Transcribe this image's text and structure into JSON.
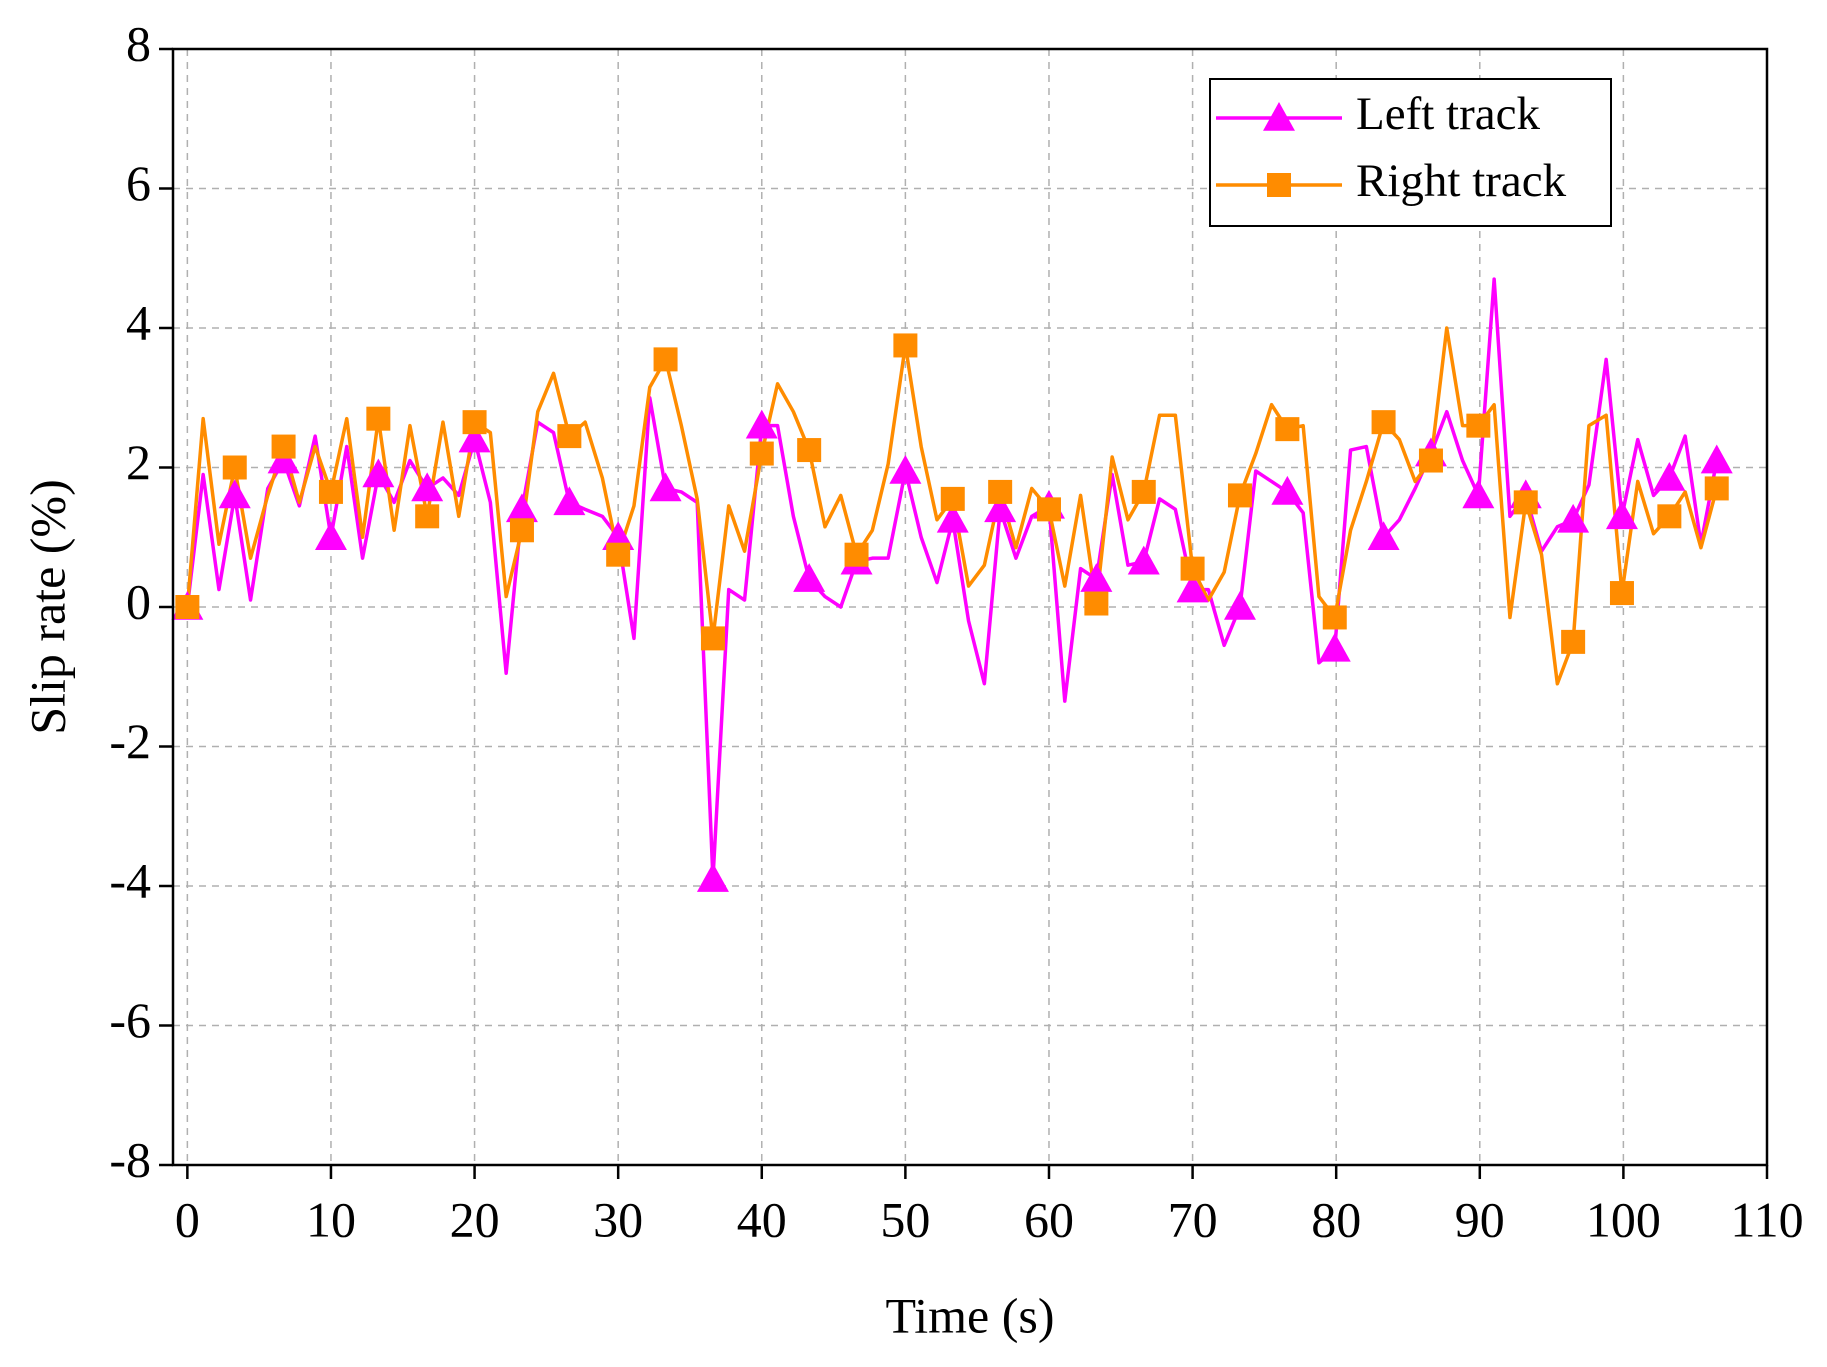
{
  "chart_data": {
    "type": "line",
    "x_label": "Time (s)",
    "y_label": "Slip rate (%)",
    "x": [
      0,
      1.1,
      2.2,
      3.3,
      4.4,
      5.6,
      6.7,
      7.8,
      8.9,
      10,
      11.1,
      12.2,
      13.3,
      14.4,
      15.5,
      16.7,
      17.8,
      18.9,
      20,
      21.1,
      22.2,
      23.3,
      24.4,
      25.5,
      26.6,
      27.7,
      28.9,
      30,
      31.1,
      32.2,
      33.3,
      34.4,
      35.5,
      36.6,
      37.7,
      38.8,
      40,
      41.1,
      42.2,
      43.3,
      44.4,
      45.5,
      46.6,
      47.7,
      48.8,
      50,
      51.1,
      52.2,
      53.3,
      54.4,
      55.5,
      56.6,
      57.7,
      58.8,
      60,
      61.1,
      62.2,
      63.3,
      64.4,
      65.5,
      66.6,
      67.7,
      68.8,
      70,
      71.1,
      72.2,
      73.3,
      74.4,
      75.5,
      76.6,
      77.7,
      78.8,
      79.9,
      81,
      82.1,
      83.3,
      84.4,
      85.5,
      86.6,
      87.7,
      88.8,
      89.9,
      91,
      92.1,
      93.2,
      94.3,
      95.4,
      96.5,
      97.6,
      98.8,
      99.9,
      101,
      102.1,
      103.2,
      104.3,
      105.4,
      106.5
    ],
    "series": [
      {
        "name": "Left track",
        "color": "#ff00ff",
        "marker": "triangle",
        "values": [
          0,
          1.9,
          0.25,
          1.6,
          0.1,
          1.7,
          2.1,
          1.45,
          2.45,
          1.0,
          2.3,
          0.7,
          1.9,
          1.5,
          2.1,
          1.7,
          1.85,
          1.6,
          2.4,
          1.5,
          -0.95,
          1.4,
          2.65,
          2.5,
          1.5,
          1.4,
          1.3,
          1.0,
          -0.45,
          3.0,
          1.7,
          1.65,
          1.5,
          -3.9,
          0.25,
          0.1,
          2.6,
          2.6,
          1.3,
          0.4,
          0.15,
          0.0,
          0.65,
          0.7,
          0.7,
          1.95,
          1.0,
          0.35,
          1.25,
          -0.2,
          -1.1,
          1.4,
          0.7,
          1.3,
          1.45,
          -1.35,
          0.55,
          0.4,
          1.9,
          0.6,
          0.65,
          1.55,
          1.4,
          0.25,
          0.25,
          -0.55,
          0.0,
          1.95,
          1.8,
          1.65,
          1.35,
          -0.8,
          -0.6,
          2.25,
          2.3,
          1.0,
          1.25,
          1.7,
          2.2,
          2.8,
          2.1,
          1.6,
          4.7,
          1.3,
          1.6,
          0.8,
          1.15,
          1.25,
          1.75,
          3.55,
          1.3,
          2.4,
          1.6,
          1.85,
          2.45,
          0.9,
          2.1
        ]
      },
      {
        "name": "Right track",
        "color": "#ff8c00",
        "marker": "square",
        "values": [
          0,
          2.7,
          0.9,
          2.0,
          0.7,
          1.6,
          2.3,
          1.5,
          2.3,
          1.65,
          2.7,
          1.0,
          2.7,
          1.1,
          2.6,
          1.3,
          2.65,
          1.3,
          2.65,
          2.5,
          0.15,
          1.1,
          2.8,
          3.35,
          2.45,
          2.65,
          1.85,
          0.75,
          1.45,
          3.15,
          3.55,
          2.6,
          1.55,
          -0.45,
          1.45,
          0.8,
          2.2,
          3.2,
          2.8,
          2.25,
          1.15,
          1.6,
          0.75,
          1.1,
          2.05,
          3.75,
          2.3,
          1.25,
          1.55,
          0.3,
          0.6,
          1.65,
          0.85,
          1.7,
          1.4,
          0.3,
          1.6,
          0.05,
          2.15,
          1.25,
          1.65,
          2.75,
          2.75,
          0.55,
          0.1,
          0.5,
          1.6,
          2.2,
          2.9,
          2.55,
          2.6,
          0.15,
          -0.15,
          1.1,
          1.8,
          2.65,
          2.4,
          1.8,
          2.1,
          4.0,
          2.6,
          2.6,
          2.9,
          -0.15,
          1.5,
          0.75,
          -1.1,
          -0.5,
          2.6,
          2.75,
          0.2,
          1.8,
          1.05,
          1.3,
          1.65,
          0.85,
          1.7
        ]
      }
    ],
    "marker_interval": 3,
    "xlim": [
      -1,
      110
    ],
    "xticks": [
      0,
      10,
      20,
      30,
      40,
      50,
      60,
      70,
      80,
      90,
      100,
      110
    ],
    "ylim": [
      -8,
      8
    ],
    "yticks": [
      -8,
      -6,
      -4,
      -2,
      0,
      2,
      4,
      6,
      8
    ],
    "grid": true,
    "legend": "upper right"
  }
}
